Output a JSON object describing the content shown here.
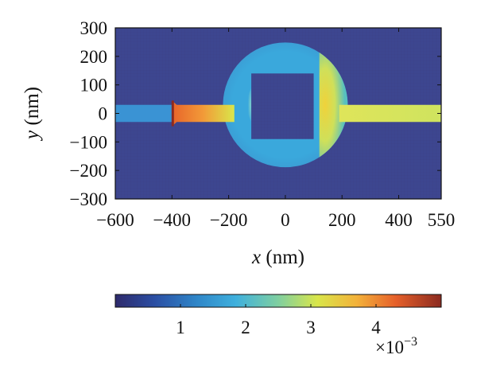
{
  "chart_data": {
    "type": "heatmap",
    "title": "",
    "xlabel": {
      "var": "x",
      "unit": " (nm)"
    },
    "ylabel": {
      "var": "y",
      "unit": " (nm)"
    },
    "xlim": [
      -600,
      550
    ],
    "ylim": [
      -300,
      300
    ],
    "x_ticks": [
      -600,
      -400,
      -200,
      0,
      200,
      400,
      550
    ],
    "x_tick_labels": [
      "−600",
      "−400",
      "−200",
      "0",
      "200",
      "400",
      "550"
    ],
    "y_ticks": [
      300,
      200,
      100,
      0,
      -100,
      -200,
      -300
    ],
    "y_tick_labels": [
      "300",
      "200",
      "100",
      "0",
      "−100",
      "−200",
      "−300"
    ],
    "grid": false,
    "colormap": "jet",
    "colorbar": {
      "range": [
        0,
        0.005
      ],
      "ticks": [
        1,
        2,
        3,
        4
      ],
      "tick_labels": [
        "1",
        "2",
        "3",
        "4"
      ],
      "multiplier_base": "×10",
      "multiplier_exp": "−3",
      "orientation": "horizontal",
      "placement": "bottom"
    },
    "structure": {
      "ring_center": [
        0,
        30
      ],
      "ring_radius": 220,
      "inner_square": {
        "x": [
          -120,
          100
        ],
        "y": [
          -90,
          140
        ]
      },
      "input_waveguide": {
        "x": [
          -600,
          -400
        ],
        "y": [
          -30,
          30
        ],
        "value": 1.4
      },
      "input_taper": {
        "x": [
          -400,
          -180
        ],
        "value": 4.3
      },
      "output_waveguide": {
        "x": [
          190,
          550
        ],
        "y": [
          -30,
          30
        ],
        "value": 2.8
      },
      "ring_value": 1.6,
      "ring_right_bright_value": 3.0,
      "background_value": 0.1
    }
  }
}
